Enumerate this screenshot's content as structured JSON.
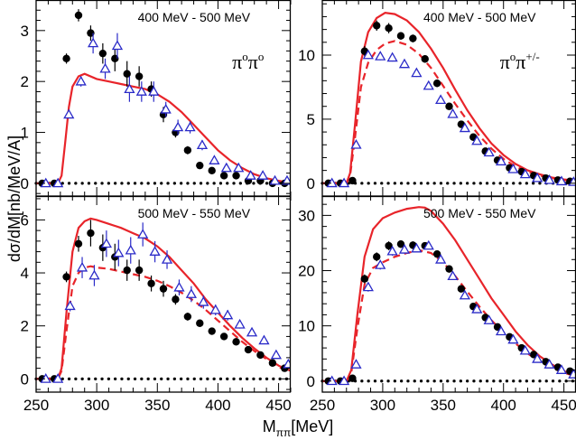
{
  "figure": {
    "ylabel": "dσ/dM[nb/MeV/A]",
    "xlabel_main": "M",
    "xlabel_sub": "ππ",
    "xlabel_unit": "[MeV]"
  },
  "colors": {
    "model_line": "#e8242a",
    "open_markers": "#2a2ac8",
    "filled_markers": "#000000",
    "frame": "#000000"
  },
  "chart_data": [
    {
      "type": "scatter",
      "panel": "top-left",
      "title": "400 MeV - 500 MeV",
      "reaction_base": "π",
      "reaction_sup1": "o",
      "reaction_mid": "π",
      "reaction_sup2": "o",
      "xlim": [
        250,
        460
      ],
      "ylim": [
        -0.25,
        3.6
      ],
      "xticks": [
        250,
        300,
        350,
        400,
        450
      ],
      "xtick_labels": [
        "",
        "",
        "",
        "",
        ""
      ],
      "yticks": [
        0,
        1,
        2,
        3
      ],
      "ytick_labels": [
        "0",
        "1",
        "2",
        "3"
      ],
      "series": [
        {
          "marker": "filled-circle",
          "x": [
            255,
            265,
            275,
            285,
            295,
            305,
            315,
            325,
            335,
            345,
            355,
            365,
            375,
            385,
            395,
            405,
            415,
            425,
            435,
            445,
            455
          ],
          "y": [
            0.0,
            0.0,
            2.45,
            3.3,
            2.95,
            2.55,
            2.45,
            2.15,
            2.1,
            1.85,
            1.35,
            1.0,
            0.65,
            0.35,
            0.25,
            0.15,
            0.15,
            0.05,
            0.05,
            0.0,
            0.0
          ],
          "err": [
            0.03,
            0.03,
            0.1,
            0.12,
            0.15,
            0.2,
            0.25,
            0.25,
            0.2,
            0.15,
            0.15,
            0.1,
            0.08,
            0.06,
            0.05,
            0.04,
            0.04,
            0.03,
            0.03,
            0.03,
            0.03
          ]
        },
        {
          "marker": "open-triangle",
          "x": [
            258,
            268,
            277,
            287,
            297,
            307,
            317,
            327,
            337,
            347,
            357,
            367,
            377,
            387,
            397,
            407,
            417,
            427,
            437,
            447,
            457
          ],
          "y": [
            0.0,
            0.0,
            1.35,
            2.0,
            2.75,
            2.25,
            2.7,
            1.85,
            1.8,
            1.8,
            1.45,
            1.1,
            1.1,
            0.75,
            0.45,
            0.3,
            0.3,
            0.15,
            0.15,
            0.05,
            0.05
          ],
          "err": [
            0.03,
            0.03,
            0.05,
            0.1,
            0.2,
            0.2,
            0.25,
            0.25,
            0.2,
            0.2,
            0.15,
            0.15,
            0.12,
            0.1,
            0.08,
            0.06,
            0.05,
            0.04,
            0.04,
            0.03,
            0.03
          ]
        }
      ],
      "solid_curve": {
        "x": [
          250,
          268,
          271,
          274,
          277,
          280,
          285,
          290,
          300,
          310,
          320,
          330,
          340,
          350,
          360,
          370,
          380,
          390,
          400,
          410,
          420,
          430,
          440,
          450,
          455,
          460
        ],
        "y": [
          0,
          0,
          0.15,
          0.8,
          1.5,
          1.9,
          2.1,
          2.15,
          2.05,
          2.0,
          1.95,
          1.9,
          1.85,
          1.75,
          1.6,
          1.4,
          1.15,
          0.9,
          0.65,
          0.45,
          0.3,
          0.18,
          0.1,
          0.05,
          0.03,
          0.02
        ]
      },
      "dashed_curve": null
    },
    {
      "type": "scatter",
      "panel": "top-right",
      "title": "400 MeV - 500 MeV",
      "reaction_base": "π",
      "reaction_sup1": "o",
      "reaction_mid": "π",
      "reaction_sup2": "+/-",
      "xlim": [
        250,
        460
      ],
      "ylim": [
        -1.0,
        14.3
      ],
      "xticks": [
        250,
        300,
        350,
        400,
        450
      ],
      "xtick_labels": [
        "",
        "",
        "",
        "",
        ""
      ],
      "yticks": [
        0,
        5,
        10
      ],
      "ytick_labels": [
        "0",
        "5",
        "10"
      ],
      "series": [
        {
          "marker": "filled-circle",
          "x": [
            255,
            265,
            275,
            285,
            295,
            305,
            315,
            325,
            335,
            345,
            355,
            365,
            375,
            385,
            395,
            405,
            415,
            425,
            435,
            445,
            455
          ],
          "y": [
            0.0,
            0.0,
            0.2,
            10.3,
            12.3,
            12.1,
            11.5,
            11.3,
            9.7,
            7.8,
            6.0,
            4.6,
            3.6,
            2.5,
            1.8,
            1.2,
            0.9,
            0.6,
            0.4,
            0.25,
            0.15
          ],
          "err": [
            0.1,
            0.1,
            0.1,
            0.4,
            0.4,
            0.4,
            0.3,
            0.3,
            0.3,
            0.3,
            0.25,
            0.2,
            0.2,
            0.15,
            0.12,
            0.1,
            0.1,
            0.08,
            0.06,
            0.05,
            0.05
          ]
        },
        {
          "marker": "open-triangle",
          "x": [
            258,
            268,
            278,
            288,
            298,
            308,
            318,
            328,
            338,
            348,
            358,
            368,
            378,
            388,
            398,
            408,
            418,
            428,
            438,
            448,
            458
          ],
          "y": [
            0.0,
            0.0,
            3.0,
            10.0,
            9.9,
            9.8,
            9.3,
            8.6,
            7.6,
            6.5,
            5.4,
            4.3,
            3.3,
            2.4,
            1.7,
            1.1,
            0.7,
            0.4,
            0.25,
            0.15,
            0.1
          ],
          "err": [
            0.1,
            0.1,
            0.2,
            0.3,
            0.3,
            0.3,
            0.3,
            0.3,
            0.25,
            0.25,
            0.2,
            0.2,
            0.15,
            0.15,
            0.12,
            0.1,
            0.08,
            0.06,
            0.05,
            0.05,
            0.05
          ]
        }
      ],
      "solid_curve": {
        "x": [
          250,
          270,
          273,
          277,
          282,
          288,
          295,
          302,
          310,
          320,
          330,
          340,
          350,
          360,
          370,
          380,
          390,
          400,
          410,
          420,
          430,
          440,
          450,
          460
        ],
        "y": [
          0,
          0,
          0.8,
          4.5,
          9.5,
          11.8,
          12.9,
          13.3,
          13.2,
          12.7,
          11.8,
          10.5,
          9.0,
          7.3,
          5.7,
          4.3,
          3.1,
          2.2,
          1.5,
          1.0,
          0.7,
          0.45,
          0.3,
          0.2
        ]
      },
      "dashed_curve": {
        "x": [
          250,
          270,
          273,
          277,
          282,
          288,
          295,
          302,
          310,
          320,
          330,
          340,
          350,
          360,
          370,
          380,
          390,
          400,
          410,
          420,
          430,
          440,
          450,
          460
        ],
        "y": [
          0,
          0,
          0.6,
          3.5,
          7.5,
          9.4,
          10.4,
          10.9,
          11.1,
          10.8,
          10.1,
          9.0,
          7.6,
          6.2,
          4.9,
          3.7,
          2.7,
          1.9,
          1.3,
          0.9,
          0.6,
          0.4,
          0.25,
          0.15
        ]
      }
    },
    {
      "type": "scatter",
      "panel": "bottom-left",
      "title": "500 MeV - 550 MeV",
      "xlim": [
        250,
        460
      ],
      "ylim": [
        -0.5,
        6.9
      ],
      "xticks": [
        250,
        300,
        350,
        400,
        450
      ],
      "xtick_labels": [
        "250",
        "300",
        "350",
        "400",
        "450"
      ],
      "yticks": [
        0,
        2,
        4,
        6
      ],
      "ytick_labels": [
        "0",
        "2",
        "4",
        "6"
      ],
      "series": [
        {
          "marker": "filled-circle",
          "x": [
            255,
            265,
            275,
            285,
            295,
            305,
            315,
            325,
            335,
            345,
            355,
            365,
            375,
            385,
            395,
            405,
            415,
            425,
            435,
            445,
            455
          ],
          "y": [
            0.0,
            0.0,
            3.85,
            5.1,
            5.5,
            4.95,
            4.6,
            4.1,
            4.1,
            3.6,
            3.4,
            3.0,
            2.35,
            2.1,
            1.8,
            1.6,
            1.4,
            1.1,
            0.9,
            0.6,
            0.4
          ],
          "err": [
            0.05,
            0.05,
            0.2,
            0.3,
            0.5,
            0.5,
            0.5,
            0.4,
            0.4,
            0.3,
            0.3,
            0.2,
            0.15,
            0.12,
            0.1,
            0.1,
            0.08,
            0.07,
            0.06,
            0.05,
            0.05
          ]
        },
        {
          "marker": "open-triangle",
          "x": [
            258,
            268,
            278,
            288,
            298,
            308,
            318,
            328,
            338,
            348,
            358,
            368,
            378,
            388,
            398,
            408,
            418,
            428,
            438,
            448,
            458
          ],
          "y": [
            0.0,
            0.0,
            2.75,
            4.2,
            3.9,
            5.1,
            4.75,
            4.85,
            5.45,
            4.8,
            4.5,
            3.45,
            3.2,
            2.9,
            2.6,
            2.4,
            2.05,
            1.75,
            1.45,
            0.9,
            0.55
          ],
          "err": [
            0.05,
            0.05,
            0.2,
            0.4,
            0.4,
            0.5,
            0.5,
            0.5,
            0.45,
            0.4,
            0.35,
            0.3,
            0.3,
            0.25,
            0.2,
            0.2,
            0.15,
            0.12,
            0.1,
            0.08,
            0.06
          ]
        }
      ],
      "solid_curve": {
        "x": [
          250,
          268,
          271,
          275,
          280,
          285,
          290,
          295,
          300,
          310,
          320,
          330,
          340,
          350,
          360,
          370,
          380,
          390,
          400,
          410,
          420,
          430,
          440,
          450,
          460
        ],
        "y": [
          0,
          0,
          0.4,
          2.5,
          4.8,
          5.7,
          5.95,
          6.05,
          6.0,
          5.85,
          5.7,
          5.5,
          5.3,
          5.0,
          4.6,
          4.1,
          3.6,
          3.0,
          2.5,
          2.0,
          1.55,
          1.15,
          0.8,
          0.5,
          0.3
        ]
      },
      "dashed_curve": {
        "x": [
          250,
          268,
          271,
          275,
          280,
          285,
          290,
          295,
          300,
          310,
          320,
          330,
          340,
          350,
          360,
          370,
          380,
          390,
          400,
          410,
          420,
          430,
          440,
          450,
          460
        ],
        "y": [
          0,
          0,
          0.3,
          1.8,
          3.5,
          4.0,
          4.2,
          4.25,
          4.2,
          4.15,
          4.05,
          3.95,
          3.85,
          3.7,
          3.5,
          3.25,
          2.95,
          2.6,
          2.2,
          1.8,
          1.4,
          1.05,
          0.75,
          0.45,
          0.25
        ]
      }
    },
    {
      "type": "scatter",
      "panel": "bottom-right",
      "title": "500 MeV - 550 MeV",
      "xlim": [
        250,
        460
      ],
      "ylim": [
        -2.0,
        33.5
      ],
      "xticks": [
        250,
        300,
        350,
        400,
        450
      ],
      "xtick_labels": [
        "250",
        "300",
        "350",
        "400",
        "450"
      ],
      "yticks": [
        0,
        10,
        20,
        30
      ],
      "ytick_labels": [
        "0",
        "10",
        "20",
        "30"
      ],
      "series": [
        {
          "marker": "filled-circle",
          "x": [
            255,
            265,
            275,
            285,
            295,
            305,
            315,
            325,
            335,
            345,
            355,
            365,
            375,
            385,
            395,
            405,
            415,
            425,
            435,
            445,
            455
          ],
          "y": [
            0.0,
            0.0,
            0.5,
            18.5,
            22.5,
            24.5,
            24.8,
            24.6,
            24.5,
            23.0,
            20.3,
            16.7,
            13.5,
            11.5,
            9.8,
            8.0,
            6.0,
            4.8,
            3.5,
            2.5,
            1.8
          ],
          "err": [
            0.2,
            0.2,
            0.3,
            0.8,
            0.8,
            0.8,
            0.7,
            0.7,
            0.6,
            0.6,
            0.6,
            0.5,
            0.5,
            0.4,
            0.4,
            0.3,
            0.3,
            0.3,
            0.2,
            0.2,
            0.2
          ]
        },
        {
          "marker": "open-triangle",
          "x": [
            258,
            268,
            278,
            288,
            298,
            308,
            318,
            328,
            338,
            348,
            358,
            368,
            378,
            388,
            398,
            408,
            418,
            428,
            438,
            448,
            458
          ],
          "y": [
            0.0,
            0.0,
            3.0,
            17.0,
            21.0,
            23.5,
            23.8,
            24.0,
            24.5,
            22.0,
            19.0,
            15.5,
            13.0,
            11.0,
            9.0,
            7.5,
            5.5,
            4.0,
            3.0,
            2.0,
            1.2
          ],
          "err": [
            0.2,
            0.2,
            0.3,
            0.8,
            0.8,
            0.8,
            0.7,
            0.7,
            0.6,
            0.6,
            0.6,
            0.5,
            0.5,
            0.4,
            0.4,
            0.3,
            0.3,
            0.3,
            0.2,
            0.2,
            0.2
          ]
        }
      ],
      "solid_curve": {
        "x": [
          250,
          270,
          274,
          279,
          285,
          292,
          300,
          310,
          320,
          330,
          335,
          340,
          350,
          360,
          370,
          380,
          390,
          400,
          410,
          420,
          430,
          440,
          450,
          460
        ],
        "y": [
          0,
          0,
          2.0,
          12.0,
          22.5,
          27.5,
          29.5,
          30.5,
          31.2,
          31.5,
          31.4,
          30.8,
          28.5,
          25.5,
          22.0,
          18.5,
          15.0,
          12.0,
          9.0,
          6.5,
          4.5,
          3.0,
          1.8,
          1.0
        ]
      },
      "dashed_curve": {
        "x": [
          250,
          270,
          274,
          279,
          285,
          292,
          300,
          310,
          320,
          330,
          340,
          350,
          360,
          370,
          380,
          390,
          400,
          410,
          420,
          430,
          440,
          450,
          460
        ],
        "y": [
          0,
          0,
          1.5,
          9.5,
          17.5,
          20.5,
          21.5,
          22.5,
          23.2,
          23.7,
          23.2,
          21.5,
          19.0,
          16.2,
          13.5,
          11.0,
          8.8,
          6.8,
          5.0,
          3.5,
          2.4,
          1.5,
          0.9
        ]
      }
    }
  ]
}
